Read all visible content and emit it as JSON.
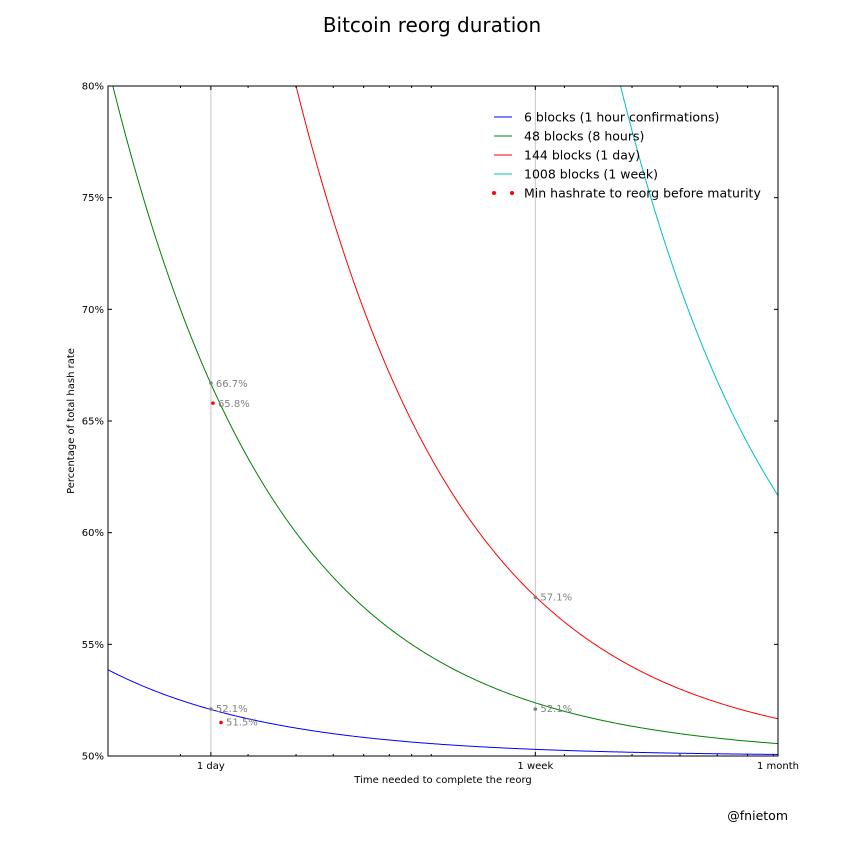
{
  "chart_data": {
    "type": "line",
    "title": "Bitcoin reorg duration",
    "xlabel": "Time needed to complete the reorg",
    "ylabel": "Percentage of total hash rate",
    "ylim": [
      50,
      80
    ],
    "yticks": [
      "50%",
      "55%",
      "60%",
      "65%",
      "70%",
      "75%",
      "80%"
    ],
    "xscale": "log",
    "xticks": [
      {
        "label": "1 day",
        "hours": 24
      },
      {
        "label": "1 week",
        "hours": 168
      },
      {
        "label": "1 month",
        "hours": 720
      }
    ],
    "vertical_gridlines": [
      "1 day",
      "1 week"
    ],
    "legend_position": "top-right",
    "series": [
      {
        "name": "6 blocks (1 hour confirmations)",
        "color": "#0000ff",
        "blocks": 6
      },
      {
        "name": "48 blocks (8 hours)",
        "color": "#008000",
        "blocks": 48
      },
      {
        "name": "144 blocks (1 day)",
        "color": "#ff0000",
        "blocks": 144
      },
      {
        "name": "1008 blocks (1 week)",
        "color": "#00bfbf",
        "blocks": 1008
      }
    ],
    "maturity_marker": {
      "name": "Min hashrate to reorg before maturity",
      "color": "#ff0000"
    },
    "annotations": [
      {
        "label": "66.7%",
        "hours": 24,
        "value": 66.7,
        "color": "#808080"
      },
      {
        "label": "65.8%",
        "hours": 24.3,
        "value": 65.8,
        "color": "#ff0000"
      },
      {
        "label": "52.1%",
        "hours": 24,
        "value": 52.1,
        "color": "#808080"
      },
      {
        "label": "51.5%",
        "hours": 25.5,
        "value": 51.5,
        "color": "#ff0000"
      },
      {
        "label": "57.1%",
        "hours": 168,
        "value": 57.1,
        "color": "#808080"
      },
      {
        "label": "52.1%",
        "hours": 168,
        "value": 52.1,
        "color": "#808080"
      }
    ]
  },
  "credit": "@fnietom"
}
